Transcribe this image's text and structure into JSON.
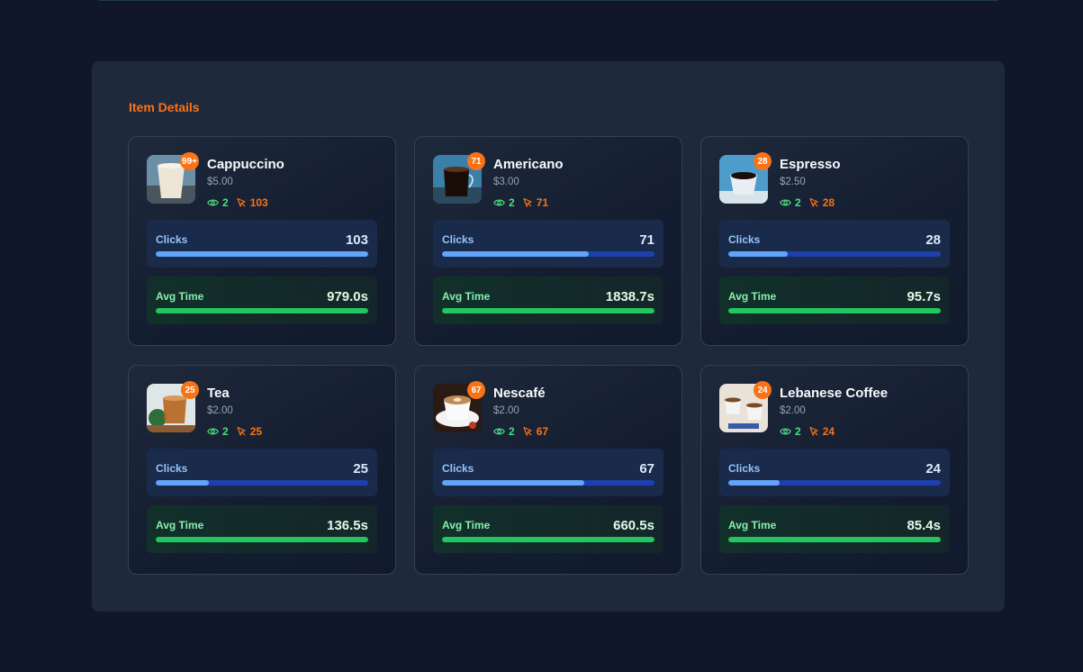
{
  "section": {
    "title": "Item Details"
  },
  "metric_labels": {
    "clicks": "Clicks",
    "avg_time": "Avg Time"
  },
  "colors": {
    "accent": "#f97316",
    "views": "#4ade80",
    "clicks_bar": "#60a5fa",
    "time_bar": "#22c55e"
  },
  "items": [
    {
      "name": "Cappuccino",
      "price": "$5.00",
      "badge": "99+",
      "views": "2",
      "clicks": "103",
      "clicks_value": "103",
      "avg_time": "979.0s",
      "clicks_fraction": 1.0,
      "time_fraction": 1.0,
      "image": "cappuccino"
    },
    {
      "name": "Americano",
      "price": "$3.00",
      "badge": "71",
      "views": "2",
      "clicks": "71",
      "clicks_value": "71",
      "avg_time": "1838.7s",
      "clicks_fraction": 0.69,
      "time_fraction": 1.0,
      "image": "americano"
    },
    {
      "name": "Espresso",
      "price": "$2.50",
      "badge": "28",
      "views": "2",
      "clicks": "28",
      "clicks_value": "28",
      "avg_time": "95.7s",
      "clicks_fraction": 0.28,
      "time_fraction": 1.0,
      "image": "espresso"
    },
    {
      "name": "Tea",
      "price": "$2.00",
      "badge": "25",
      "views": "2",
      "clicks": "25",
      "clicks_value": "25",
      "avg_time": "136.5s",
      "clicks_fraction": 0.25,
      "time_fraction": 1.0,
      "image": "tea"
    },
    {
      "name": "Nescafé",
      "price": "$2.00",
      "badge": "67",
      "views": "2",
      "clicks": "67",
      "clicks_value": "67",
      "avg_time": "660.5s",
      "clicks_fraction": 0.67,
      "time_fraction": 1.0,
      "image": "nescafe"
    },
    {
      "name": "Lebanese Coffee",
      "price": "$2.00",
      "badge": "24",
      "views": "2",
      "clicks": "24",
      "clicks_value": "24",
      "avg_time": "85.4s",
      "clicks_fraction": 0.24,
      "time_fraction": 1.0,
      "image": "lebanese"
    }
  ]
}
